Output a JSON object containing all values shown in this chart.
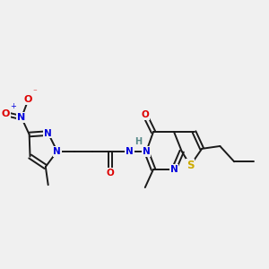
{
  "background_color": "#f0f0f0",
  "bond_color": "#1a1a1a",
  "N_color": "#0000dd",
  "O_color": "#dd0000",
  "S_color": "#ccaa00",
  "H_color": "#558888",
  "lw": 1.4,
  "fontsize": 7.5,
  "xlim": [
    0,
    10
  ],
  "ylim": [
    0,
    10
  ]
}
